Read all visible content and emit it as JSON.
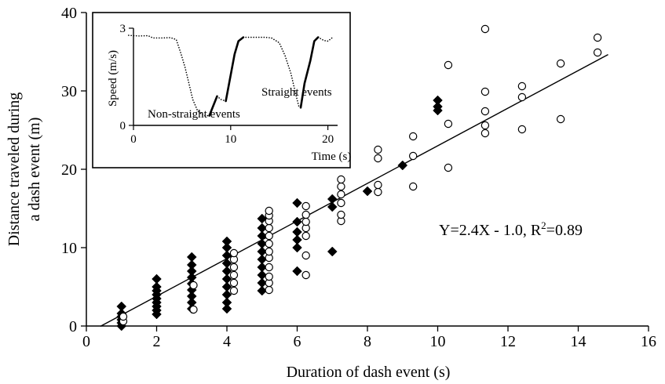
{
  "chart_data": [
    {
      "type": "scatter",
      "title": "",
      "xlabel": "Duration of dash event (s)",
      "ylabel_lines": [
        "Distance traveled during",
        "a dash event (m)"
      ],
      "xlim": [
        0,
        16
      ],
      "ylim": [
        0,
        40
      ],
      "x_ticks": [
        0,
        2,
        4,
        6,
        8,
        10,
        12,
        14,
        16
      ],
      "y_ticks": [
        0,
        10,
        20,
        30,
        40
      ],
      "grid": false,
      "legend": "none",
      "series": [
        {
          "marker": "filled-diamond",
          "color": "#000000",
          "points": [
            [
              1,
              0.0
            ],
            [
              1,
              0.4
            ],
            [
              1,
              0.8
            ],
            [
              1,
              1.2
            ],
            [
              1,
              1.6
            ],
            [
              1,
              2.5
            ],
            [
              2,
              1.5
            ],
            [
              2,
              2.0
            ],
            [
              2,
              2.5
            ],
            [
              2,
              3.0
            ],
            [
              2,
              3.5
            ],
            [
              2,
              4.0
            ],
            [
              2,
              4.5
            ],
            [
              2,
              5.0
            ],
            [
              2,
              6.0
            ],
            [
              3,
              2.2
            ],
            [
              3,
              3.0
            ],
            [
              3,
              3.8
            ],
            [
              3,
              4.6
            ],
            [
              3,
              5.4
            ],
            [
              3,
              6.2
            ],
            [
              3,
              7.0
            ],
            [
              3,
              7.8
            ],
            [
              3,
              8.8
            ],
            [
              4,
              2.2
            ],
            [
              4,
              3.0
            ],
            [
              4,
              4.0
            ],
            [
              4,
              5.0
            ],
            [
              4,
              6.0
            ],
            [
              4,
              7.0
            ],
            [
              4,
              8.0
            ],
            [
              4,
              9.0
            ],
            [
              4,
              10.0
            ],
            [
              4,
              10.8
            ],
            [
              5,
              4.5
            ],
            [
              5,
              5.5
            ],
            [
              5,
              6.5
            ],
            [
              5,
              7.5
            ],
            [
              5,
              8.5
            ],
            [
              5,
              9.5
            ],
            [
              5,
              10.5
            ],
            [
              5,
              11.5
            ],
            [
              5,
              12.5
            ],
            [
              5,
              13.7
            ],
            [
              6,
              7.0
            ],
            [
              6,
              10.0
            ],
            [
              6,
              11.0
            ],
            [
              6,
              12.0
            ],
            [
              6,
              13.3
            ],
            [
              6,
              15.7
            ],
            [
              7,
              9.5
            ],
            [
              7,
              15.2
            ],
            [
              7,
              16.2
            ],
            [
              8,
              17.2
            ],
            [
              9,
              20.5
            ],
            [
              10,
              27.5
            ],
            [
              10,
              28.0
            ],
            [
              10,
              28.8
            ]
          ]
        },
        {
          "marker": "open-circle",
          "color": "#000000",
          "points": [
            [
              1.05,
              0.6
            ],
            [
              1.05,
              1.2
            ],
            [
              3.05,
              2.1
            ],
            [
              3.05,
              5.2
            ],
            [
              4.2,
              4.5
            ],
            [
              4.2,
              5.5
            ],
            [
              4.2,
              6.5
            ],
            [
              4.2,
              7.5
            ],
            [
              4.2,
              8.5
            ],
            [
              4.2,
              9.3
            ],
            [
              5.2,
              4.6
            ],
            [
              5.2,
              5.5
            ],
            [
              5.2,
              6.3
            ],
            [
              5.2,
              7.5
            ],
            [
              5.2,
              8.7
            ],
            [
              5.2,
              9.5
            ],
            [
              5.2,
              10.5
            ],
            [
              5.2,
              11.5
            ],
            [
              5.2,
              12.5
            ],
            [
              5.2,
              13.4
            ],
            [
              5.2,
              14.1
            ],
            [
              5.2,
              14.7
            ],
            [
              6.25,
              6.5
            ],
            [
              6.25,
              9.0
            ],
            [
              6.25,
              11.5
            ],
            [
              6.25,
              12.5
            ],
            [
              6.25,
              13.3
            ],
            [
              6.25,
              14.2
            ],
            [
              6.25,
              15.3
            ],
            [
              7.25,
              13.4
            ],
            [
              7.25,
              14.2
            ],
            [
              7.25,
              15.7
            ],
            [
              7.25,
              16.8
            ],
            [
              7.25,
              17.8
            ],
            [
              7.25,
              18.7
            ],
            [
              8.3,
              17.1
            ],
            [
              8.3,
              18.0
            ],
            [
              8.3,
              21.4
            ],
            [
              8.3,
              22.5
            ],
            [
              9.3,
              17.8
            ],
            [
              9.3,
              21.7
            ],
            [
              9.3,
              24.2
            ],
            [
              10.3,
              20.2
            ],
            [
              10.3,
              25.8
            ],
            [
              10.3,
              33.3
            ],
            [
              11.35,
              24.6
            ],
            [
              11.35,
              25.6
            ],
            [
              11.35,
              27.4
            ],
            [
              11.35,
              29.9
            ],
            [
              11.35,
              37.9
            ],
            [
              12.4,
              25.1
            ],
            [
              12.4,
              29.2
            ],
            [
              12.4,
              30.6
            ],
            [
              13.5,
              26.4
            ],
            [
              13.5,
              33.5
            ],
            [
              14.55,
              34.9
            ],
            [
              14.55,
              36.8
            ]
          ]
        }
      ],
      "fit_line": {
        "slope": 2.4,
        "intercept": -1.0,
        "x_range": [
          0.4,
          14.85
        ]
      },
      "annotation": {
        "text": "Y=2.4X - 1.0, R",
        "superscript": "2",
        "suffix": "=0.89"
      }
    },
    {
      "type": "line",
      "title": "",
      "xlabel": "Time (s)",
      "ylabel": "Speed (m/s)",
      "xlim": [
        0,
        21
      ],
      "ylim": [
        0,
        3
      ],
      "x_ticks": [
        0,
        10,
        20
      ],
      "y_ticks": [
        0,
        3
      ],
      "grid": false,
      "legend": "none",
      "annotations": [
        "Non-straight events",
        "Straight events"
      ],
      "segments": [
        {
          "style": "dotted",
          "points": [
            [
              -0.5,
              2.78
            ],
            [
              0.5,
              2.76
            ],
            [
              1.5,
              2.77
            ],
            [
              2.0,
              2.7
            ],
            [
              3.0,
              2.7
            ],
            [
              3.8,
              2.71
            ],
            [
              4.4,
              2.65
            ],
            [
              4.9,
              2.2
            ],
            [
              5.3,
              1.8
            ],
            [
              5.7,
              1.3
            ],
            [
              6.1,
              0.8
            ],
            [
              6.6,
              0.45
            ],
            [
              7.2,
              0.3
            ],
            [
              7.8,
              0.3
            ]
          ]
        },
        {
          "style": "solid",
          "points": [
            [
              7.8,
              0.3
            ],
            [
              8.6,
              0.9
            ]
          ]
        },
        {
          "style": "dotted",
          "points": [
            [
              8.6,
              0.9
            ],
            [
              9.0,
              0.8
            ],
            [
              9.5,
              0.75
            ]
          ]
        },
        {
          "style": "solid",
          "points": [
            [
              9.5,
              0.75
            ],
            [
              10.4,
              2.2
            ],
            [
              10.8,
              2.6
            ],
            [
              11.3,
              2.72
            ]
          ]
        },
        {
          "style": "dotted",
          "points": [
            [
              11.3,
              2.72
            ],
            [
              12.5,
              2.72
            ],
            [
              13.5,
              2.72
            ],
            [
              14.2,
              2.7
            ],
            [
              15.0,
              2.55
            ],
            [
              15.6,
              2.15
            ],
            [
              16.2,
              1.6
            ],
            [
              16.7,
              0.95
            ],
            [
              17.0,
              0.6
            ],
            [
              17.2,
              0.55
            ]
          ]
        },
        {
          "style": "solid",
          "points": [
            [
              17.2,
              0.55
            ],
            [
              17.6,
              1.3
            ],
            [
              18.2,
              2.0
            ],
            [
              18.6,
              2.6
            ],
            [
              19.0,
              2.72
            ]
          ]
        },
        {
          "style": "dotted",
          "points": [
            [
              19.0,
              2.72
            ],
            [
              19.6,
              2.62
            ],
            [
              20.0,
              2.6
            ],
            [
              20.5,
              2.72
            ]
          ]
        }
      ]
    }
  ]
}
